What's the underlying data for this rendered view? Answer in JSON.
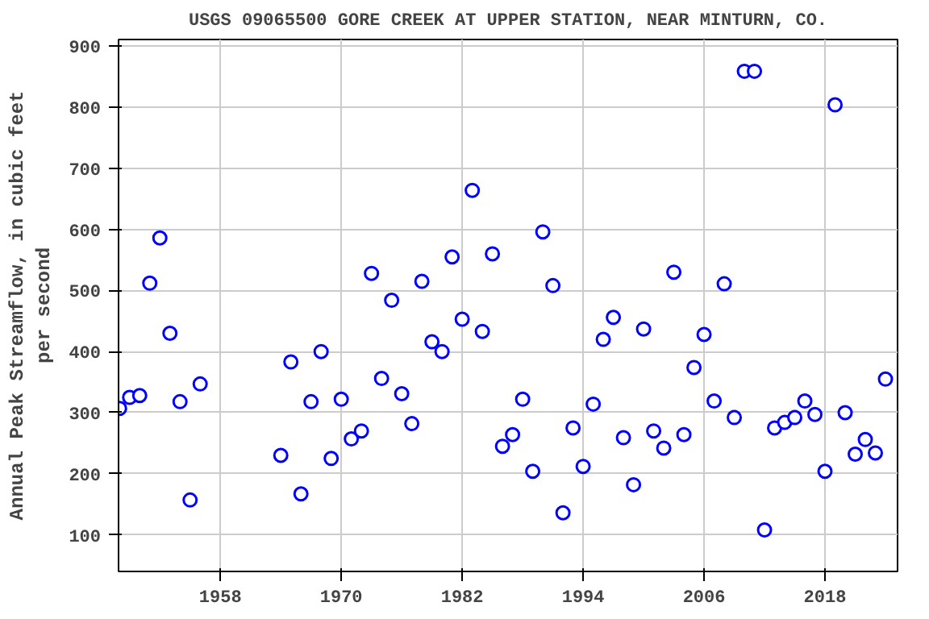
{
  "chart_data": {
    "type": "scatter",
    "title": "USGS 09065500 GORE CREEK AT UPPER STATION, NEAR MINTURN, CO.",
    "ylabel": "Annual Peak Streamflow, in cubic feet\nper second",
    "x": [
      1948,
      1949,
      1950,
      1951,
      1952,
      1953,
      1954,
      1955,
      1956,
      1964,
      1965,
      1966,
      1967,
      1968,
      1969,
      1970,
      1971,
      1972,
      1973,
      1974,
      1975,
      1976,
      1977,
      1978,
      1979,
      1980,
      1981,
      1982,
      1983,
      1984,
      1985,
      1986,
      1987,
      1988,
      1989,
      1990,
      1991,
      1992,
      1993,
      1994,
      1995,
      1996,
      1997,
      1998,
      1999,
      2000,
      2001,
      2002,
      2003,
      2004,
      2005,
      2006,
      2007,
      2008,
      2009,
      2010,
      2011,
      2012,
      2013,
      2014,
      2015,
      2016,
      2017,
      2018,
      2019,
      2020,
      2021,
      2022,
      2023,
      2024
    ],
    "series": [
      {
        "color": "#0000ff",
        "values": [
          307,
          325,
          328,
          512,
          586,
          430,
          318,
          157,
          347,
          230,
          383,
          167,
          318,
          400,
          225,
          322,
          257,
          270,
          528,
          356,
          484,
          331,
          282,
          515,
          416,
          400,
          555,
          453,
          664,
          433,
          560,
          245,
          264,
          322,
          204,
          596,
          508,
          136,
          275,
          212,
          314,
          420,
          456,
          259,
          182,
          437,
          270,
          242,
          530,
          264,
          374,
          428,
          319,
          511,
          292,
          859,
          859,
          108,
          275,
          284,
          292,
          319,
          297,
          204,
          804,
          300,
          232,
          256,
          234,
          355
        ]
      }
    ],
    "xlim": [
      1947.9,
      2025.2
    ],
    "xticks": [
      1958,
      1970,
      1982,
      1994,
      2006,
      2018
    ],
    "ylim": [
      40,
      911
    ],
    "yticks": [
      100,
      200,
      300,
      400,
      500,
      600,
      700,
      800,
      900
    ],
    "grid": true,
    "marker": "circle"
  }
}
